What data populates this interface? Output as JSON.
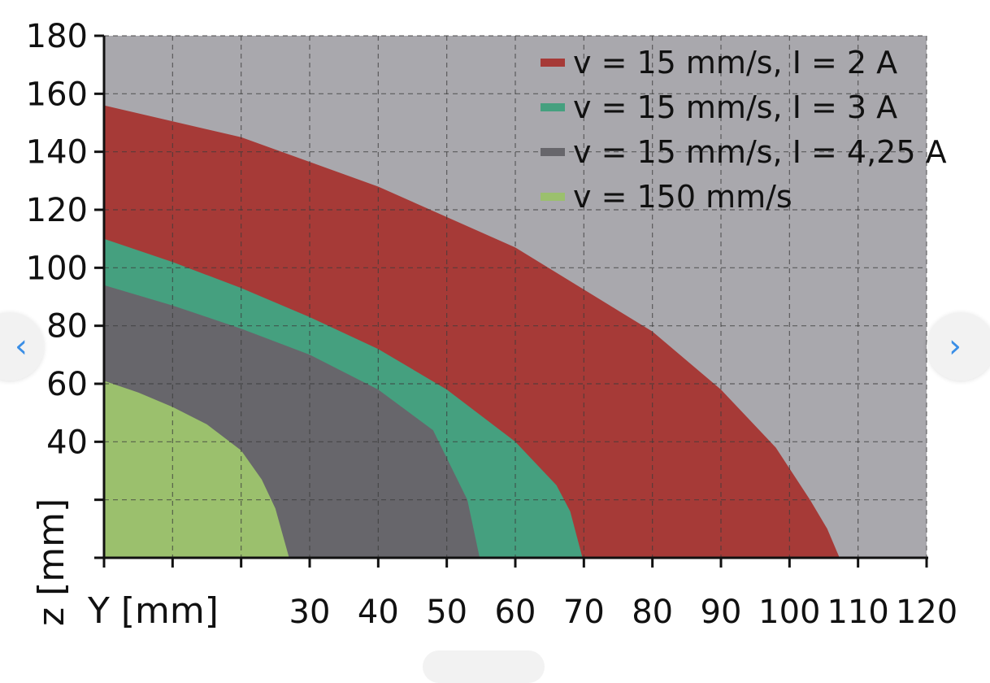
{
  "chart_data": {
    "type": "area",
    "xlabel": "Y [mm]",
    "ylabel": "z [mm]",
    "xlim": [
      0,
      120
    ],
    "ylim": [
      0,
      180
    ],
    "x_ticks": [
      0,
      10,
      20,
      30,
      40,
      50,
      60,
      70,
      80,
      90,
      100,
      110,
      120
    ],
    "x_tick_labels": [
      "",
      "",
      "",
      "30",
      "40",
      "50",
      "60",
      "70",
      "80",
      "90",
      "100",
      "110",
      "120"
    ],
    "y_ticks": [
      0,
      20,
      40,
      60,
      80,
      100,
      120,
      140,
      160,
      180
    ],
    "y_tick_labels": [
      "",
      "",
      "40",
      "60",
      "80",
      "100",
      "120",
      "140",
      "160",
      "180"
    ],
    "grid": true,
    "legend_position": "top-right",
    "background_color": "#a9a8ad",
    "series": [
      {
        "name": "v = 15 mm/s, I = 2 A",
        "color": "#a63a37",
        "x": [
          0,
          20,
          40,
          60,
          80,
          90,
          98,
          103,
          105.5,
          107.3
        ],
        "y": [
          156,
          145,
          128,
          107,
          78,
          58,
          38,
          20,
          10,
          0
        ]
      },
      {
        "name": "v = 15 mm/s, I = 3 A",
        "color": "#45a07f",
        "x": [
          0,
          10,
          20,
          30,
          40,
          50,
          60,
          66,
          68,
          69.8
        ],
        "y": [
          110,
          102,
          93,
          83,
          72,
          58,
          40,
          25,
          16,
          0
        ]
      },
      {
        "name": "v = 15 mm/s, I = 4,25 A",
        "color": "#67666b",
        "x": [
          0,
          10,
          20,
          30,
          40,
          48,
          53,
          54.8
        ],
        "y": [
          94,
          87,
          79,
          70,
          58,
          44,
          20,
          0
        ]
      },
      {
        "name": "v = 150 mm/s",
        "color": "#9bc06d",
        "x": [
          0,
          5,
          10,
          15,
          20,
          23,
          25,
          27
        ],
        "y": [
          61,
          57,
          52,
          46,
          37,
          27,
          17,
          0
        ]
      }
    ]
  },
  "nav": {
    "prev_glyph": "‹",
    "next_glyph": "›"
  }
}
